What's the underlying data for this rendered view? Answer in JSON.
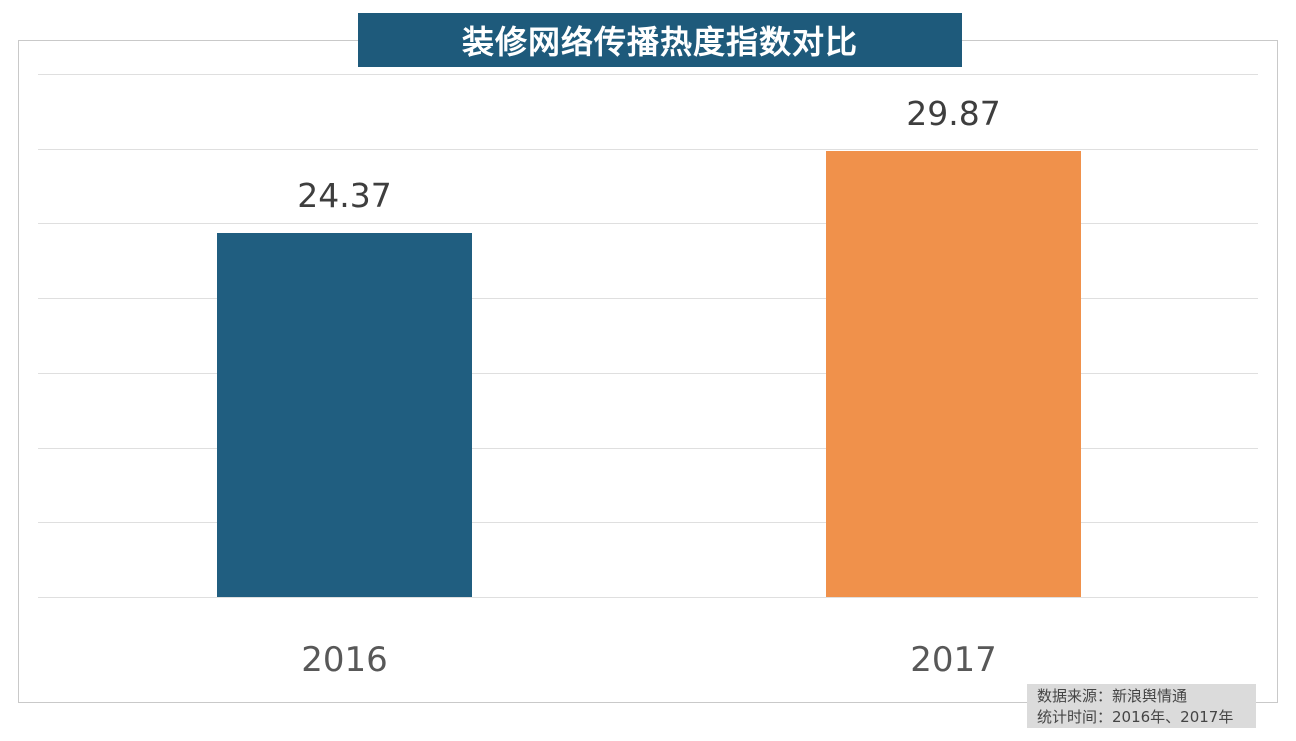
{
  "title": "装修网络传播热度指数对比",
  "source_note": {
    "line1": "数据来源：新浪舆情通",
    "line2": "统计时间：2016年、2017年"
  },
  "chart_data": {
    "type": "bar",
    "title": "装修网络传播热度指数对比",
    "categories": [
      "2016",
      "2017"
    ],
    "values": [
      24.37,
      29.87
    ],
    "value_labels": [
      "24.37",
      "29.87"
    ],
    "bar_colors": [
      "#205e80",
      "#f0914b"
    ],
    "xlabel": "",
    "ylabel": "",
    "ylim": [
      0,
      35
    ],
    "grid_step": 5,
    "grid": true,
    "legend": false,
    "axis_tick_labels_visible": false
  },
  "colors": {
    "title_bg": "#1e5a7b",
    "title_text": "#ffffff",
    "grid_line": "#dfdfdf",
    "plot_border": "#c9c9c9",
    "value_label": "#3e3e3e",
    "category_label": "#585858",
    "note_bg": "#dbdbdb",
    "note_text": "#454545"
  }
}
